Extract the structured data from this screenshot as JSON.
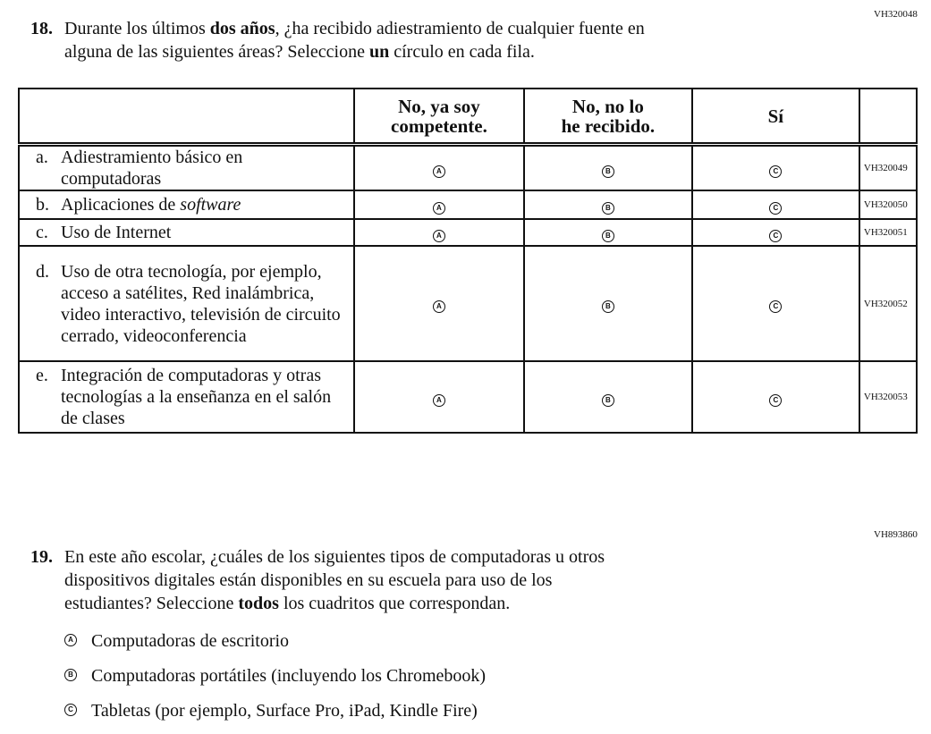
{
  "q18": {
    "code": "VH320048",
    "number": "18.",
    "text_parts": [
      "Durante los últimos ",
      "dos años",
      ", ¿ha recibido adiestramiento de cualquier fuente en"
    ],
    "line2_parts": [
      "alguna de las siguientes áreas? Seleccione ",
      "un",
      " círculo en cada fila."
    ],
    "columns": [
      "No, ya soy competente.",
      "No, no lo he recibido.",
      "Sí"
    ],
    "bubbles": [
      "A",
      "B",
      "C"
    ],
    "rows": [
      {
        "letter": "a.",
        "text": "Adiestramiento básico en computadoras",
        "code": "VH320049"
      },
      {
        "letter": "b.",
        "text": "Aplicaciones de ",
        "italic": "software",
        "code": "VH320050"
      },
      {
        "letter": "c.",
        "text": "Uso de Internet",
        "code": "VH320051"
      },
      {
        "letter": "d.",
        "text": "Uso de otra tecnología, por ejemplo, acceso a satélites, Red inalámbrica, video interactivo, televisión de circuito cerrado, videoconferencia",
        "code": "VH320052"
      },
      {
        "letter": "e.",
        "text": "Integración de computadoras y otras tecnologías a la enseñanza en el salón de clases",
        "code": "VH320053"
      }
    ]
  },
  "q19": {
    "code": "VH893860",
    "number": "19.",
    "line1": "En este año escolar, ¿cuáles de los siguientes tipos de computadoras u otros",
    "line2": "dispositivos digitales están disponibles en su escuela para uso de los",
    "line3_parts": [
      "estudiantes? Seleccione ",
      "todos",
      " los cuadritos que correspondan."
    ],
    "options": [
      {
        "bubble": "A",
        "label": "Computadoras de escritorio"
      },
      {
        "bubble": "B",
        "label": "Computadoras portátiles (incluyendo los Chromebook)"
      },
      {
        "bubble": "C",
        "label": "Tabletas (por ejemplo, Surface Pro, iPad, Kindle Fire)"
      }
    ]
  }
}
